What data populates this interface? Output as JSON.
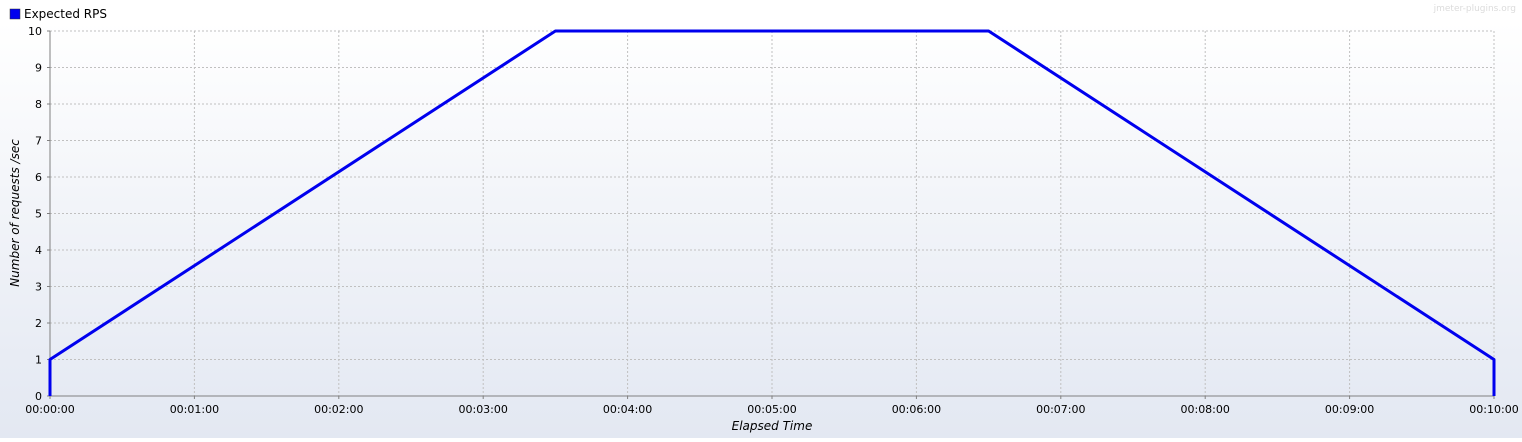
{
  "watermark": "jmeter-plugins.org",
  "colors": {
    "series": "#0000ee",
    "grid": "#c0c0c0",
    "axis": "#808080",
    "text": "#000000",
    "watermark": "#dcdcdc"
  },
  "chart_data": {
    "type": "line",
    "title": "",
    "xlabel": "Elapsed Time",
    "ylabel": "Number of requests /sec",
    "xlim": [
      0,
      600
    ],
    "ylim": [
      0,
      10
    ],
    "x_ticks": [
      "00:00:00",
      "00:01:00",
      "00:02:00",
      "00:03:00",
      "00:04:00",
      "00:05:00",
      "00:06:00",
      "00:07:00",
      "00:08:00",
      "00:09:00",
      "00:10:00"
    ],
    "x_tick_values": [
      0,
      60,
      120,
      180,
      240,
      300,
      360,
      420,
      480,
      540,
      600
    ],
    "y_ticks": [
      0,
      1,
      2,
      3,
      4,
      5,
      6,
      7,
      8,
      9,
      10
    ],
    "grid": true,
    "legend": "top-left",
    "series": [
      {
        "name": "Expected RPS",
        "x": [
          0,
          0,
          210,
          390,
          600,
          600
        ],
        "y": [
          0,
          1,
          10,
          10,
          1,
          0
        ]
      }
    ]
  }
}
